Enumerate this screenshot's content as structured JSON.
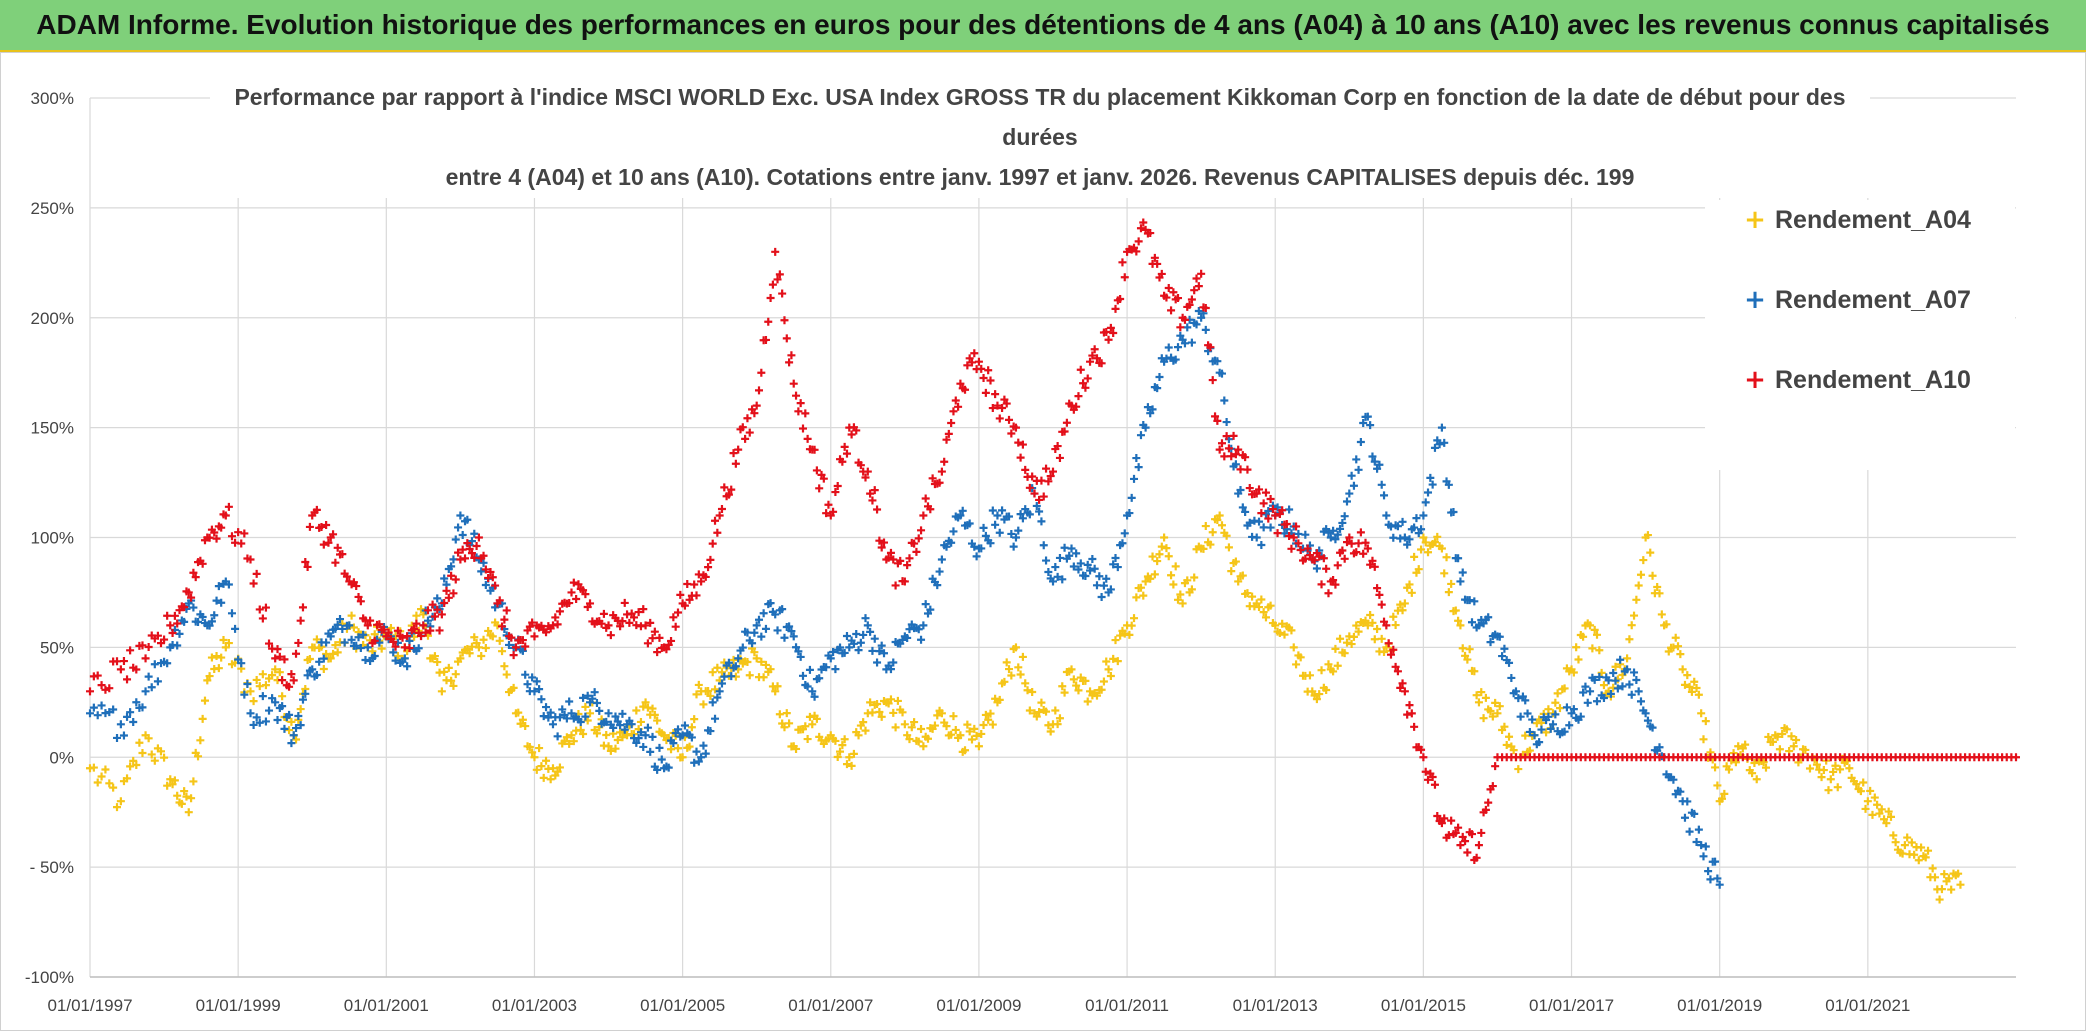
{
  "banner": {
    "title": "ADAM Informe. Evolution historique des performances en euros pour des détentions de 4 ans (A04) à 10 ans (A10) avec les revenus connus capitalisés"
  },
  "chart_data": {
    "type": "scatter",
    "title_lines": [
      "Performance par rapport à l'indice MSCI WORLD Exc. USA Index GROSS TR  du placement Kikkoman Corp en fonction de la date de début pour des",
      "durées",
      "entre 4 (A04) et 10 ans (A10). Cotations entre janv. 1997 et janv. 2026. Revenus CAPITALISES depuis déc. 199"
    ],
    "xlabel": "",
    "ylabel": "",
    "x_range": [
      "1997-01-01",
      "2023-01-01"
    ],
    "x_tick_labels": [
      "01/01/1997",
      "01/01/1999",
      "01/01/2001",
      "01/01/2003",
      "01/01/2005",
      "01/01/2007",
      "01/01/2009",
      "01/01/2011",
      "01/01/2013",
      "01/01/2015",
      "01/01/2017",
      "01/01/2019",
      "01/01/2021"
    ],
    "ylim": [
      -100,
      300
    ],
    "y_ticks": [
      -100,
      -50,
      0,
      50,
      100,
      150,
      200,
      250,
      300
    ],
    "y_tick_labels": [
      "-100%",
      "- 50%",
      "0%",
      "50%",
      "100%",
      "150%",
      "200%",
      "250%",
      "300%"
    ],
    "grid": true,
    "legend_position": "top-right",
    "marker": "+",
    "series": [
      {
        "name": "Rendement_A04",
        "color": "#f5c518",
        "x": [
          "1997-01",
          "1997-06",
          "1997-10",
          "1998-02",
          "1998-05",
          "1998-08",
          "1998-11",
          "1999-03",
          "1999-07",
          "1999-10",
          "2000-01",
          "2000-04",
          "2000-07",
          "2000-10",
          "2001-01",
          "2001-04",
          "2001-07",
          "2001-10",
          "2002-01",
          "2002-04",
          "2002-07",
          "2002-10",
          "2003-01",
          "2003-04",
          "2003-07",
          "2003-10",
          "2004-01",
          "2004-04",
          "2004-07",
          "2004-10",
          "2005-01",
          "2005-04",
          "2005-07",
          "2005-10",
          "2006-01",
          "2006-04",
          "2006-07",
          "2006-10",
          "2007-01",
          "2007-04",
          "2007-07",
          "2007-10",
          "2008-01",
          "2008-04",
          "2008-07",
          "2008-10",
          "2009-01",
          "2009-04",
          "2009-07",
          "2009-10",
          "2010-01",
          "2010-04",
          "2010-07",
          "2010-10",
          "2011-01",
          "2011-04",
          "2011-07",
          "2011-10",
          "2012-01",
          "2012-04",
          "2012-07",
          "2012-10",
          "2013-01",
          "2013-04",
          "2013-07",
          "2013-10",
          "2014-01",
          "2014-04",
          "2014-07",
          "2014-10",
          "2015-01",
          "2015-04",
          "2015-07",
          "2015-10",
          "2016-01",
          "2016-04",
          "2016-07",
          "2016-10",
          "2017-01",
          "2017-04",
          "2017-07",
          "2017-10",
          "2018-01",
          "2018-04",
          "2018-07",
          "2018-10",
          "2019-01",
          "2019-04",
          "2019-07",
          "2019-10",
          "2020-01",
          "2020-04",
          "2020-07",
          "2020-10",
          "2021-01",
          "2021-04",
          "2021-07",
          "2021-10",
          "2022-01",
          "2022-04"
        ],
        "y": [
          -5,
          -20,
          10,
          -10,
          -25,
          35,
          50,
          30,
          40,
          10,
          50,
          45,
          60,
          50,
          55,
          50,
          65,
          30,
          45,
          50,
          60,
          20,
          0,
          -5,
          10,
          20,
          5,
          10,
          25,
          10,
          0,
          30,
          35,
          40,
          45,
          30,
          5,
          15,
          10,
          0,
          20,
          25,
          15,
          5,
          20,
          10,
          5,
          25,
          50,
          20,
          15,
          40,
          30,
          40,
          60,
          80,
          100,
          70,
          95,
          110,
          80,
          70,
          60,
          50,
          30,
          40,
          55,
          60,
          50,
          70,
          100,
          95,
          60,
          25,
          20,
          0,
          10,
          20,
          40,
          60,
          30,
          45,
          100,
          60,
          40,
          20,
          -20,
          5,
          -10,
          10,
          5,
          0,
          -10,
          -5,
          -20,
          -30,
          -40,
          -45,
          -60,
          -58
        ]
      },
      {
        "name": "Rendement_A07",
        "color": "#1f6fba",
        "x": [
          "1997-01",
          "1997-06",
          "1997-10",
          "1998-02",
          "1998-05",
          "1998-08",
          "1998-11",
          "1999-03",
          "1999-07",
          "1999-10",
          "2000-01",
          "2000-04",
          "2000-07",
          "2000-10",
          "2001-01",
          "2001-04",
          "2001-07",
          "2001-10",
          "2002-01",
          "2002-04",
          "2002-07",
          "2002-10",
          "2003-01",
          "2003-04",
          "2003-07",
          "2003-10",
          "2004-01",
          "2004-04",
          "2004-07",
          "2004-10",
          "2005-01",
          "2005-04",
          "2005-07",
          "2005-10",
          "2006-01",
          "2006-04",
          "2006-07",
          "2006-10",
          "2007-01",
          "2007-04",
          "2007-07",
          "2007-10",
          "2008-01",
          "2008-04",
          "2008-07",
          "2008-10",
          "2009-01",
          "2009-04",
          "2009-07",
          "2009-10",
          "2010-01",
          "2010-04",
          "2010-07",
          "2010-10",
          "2011-01",
          "2011-04",
          "2011-07",
          "2011-10",
          "2012-01",
          "2012-04",
          "2012-07",
          "2012-10",
          "2013-01",
          "2013-04",
          "2013-07",
          "2013-10",
          "2014-01",
          "2014-04",
          "2014-07",
          "2014-10",
          "2015-01",
          "2015-04",
          "2015-07",
          "2015-10",
          "2016-01",
          "2016-04",
          "2016-07",
          "2016-10",
          "2017-01",
          "2017-04",
          "2017-07",
          "2017-10",
          "2018-01",
          "2018-04",
          "2018-07",
          "2018-10",
          "2019-01"
        ],
        "y": [
          20,
          15,
          30,
          50,
          70,
          60,
          80,
          20,
          25,
          10,
          40,
          55,
          60,
          50,
          55,
          45,
          60,
          70,
          110,
          90,
          70,
          50,
          30,
          15,
          20,
          25,
          20,
          15,
          10,
          -5,
          10,
          0,
          30,
          45,
          60,
          65,
          55,
          30,
          45,
          50,
          60,
          40,
          55,
          60,
          90,
          110,
          95,
          110,
          100,
          120,
          80,
          95,
          85,
          75,
          110,
          150,
          180,
          190,
          200,
          175,
          120,
          100,
          110,
          105,
          90,
          100,
          120,
          155,
          110,
          100,
          110,
          150,
          80,
          60,
          55,
          30,
          10,
          15,
          20,
          30,
          35,
          40,
          20,
          0,
          -20,
          -40,
          -58
        ]
      },
      {
        "name": "Rendement_A10",
        "color": "#e3101a",
        "x": [
          "1997-01",
          "1997-06",
          "1997-10",
          "1998-02",
          "1998-05",
          "1998-08",
          "1998-11",
          "1999-03",
          "1999-07",
          "1999-10",
          "2000-01",
          "2000-04",
          "2000-07",
          "2000-10",
          "2001-01",
          "2001-04",
          "2001-07",
          "2001-10",
          "2002-01",
          "2002-04",
          "2002-07",
          "2002-10",
          "2003-01",
          "2003-04",
          "2003-07",
          "2003-10",
          "2004-01",
          "2004-04",
          "2004-07",
          "2004-10",
          "2005-01",
          "2005-04",
          "2005-07",
          "2005-10",
          "2006-01",
          "2006-04",
          "2006-07",
          "2006-10",
          "2007-01",
          "2007-04",
          "2007-07",
          "2007-10",
          "2008-01",
          "2008-04",
          "2008-07",
          "2008-10",
          "2009-01",
          "2009-04",
          "2009-07",
          "2009-10",
          "2010-01",
          "2010-04",
          "2010-07",
          "2010-10",
          "2011-01",
          "2011-04",
          "2011-07",
          "2011-10",
          "2012-01",
          "2012-04",
          "2012-07",
          "2012-10",
          "2013-01",
          "2013-04",
          "2013-07",
          "2013-10",
          "2014-01",
          "2014-04",
          "2014-07",
          "2014-10",
          "2015-01",
          "2015-04",
          "2015-07",
          "2015-10",
          "2016-01",
          "2016-07",
          "2017-01",
          "2017-07",
          "2018-01",
          "2018-07",
          "2019-01",
          "2019-07",
          "2020-01",
          "2020-07",
          "2021-01",
          "2021-07",
          "2022-01",
          "2022-07",
          "2023-01"
        ],
        "y": [
          30,
          40,
          45,
          60,
          75,
          100,
          110,
          90,
          45,
          35,
          110,
          100,
          80,
          60,
          55,
          50,
          60,
          65,
          90,
          100,
          70,
          50,
          55,
          60,
          75,
          70,
          60,
          65,
          60,
          50,
          70,
          80,
          110,
          140,
          160,
          230,
          170,
          140,
          110,
          150,
          130,
          90,
          80,
          110,
          130,
          170,
          180,
          160,
          150,
          120,
          130,
          160,
          180,
          190,
          230,
          240,
          210,
          200,
          220,
          140,
          140,
          120,
          110,
          100,
          90,
          80,
          100,
          95,
          60,
          30,
          0,
          -30,
          -40,
          -40,
          0,
          0,
          0,
          0,
          0,
          0,
          0,
          0,
          0,
          0,
          0,
          0,
          0,
          0,
          0
        ]
      }
    ]
  }
}
